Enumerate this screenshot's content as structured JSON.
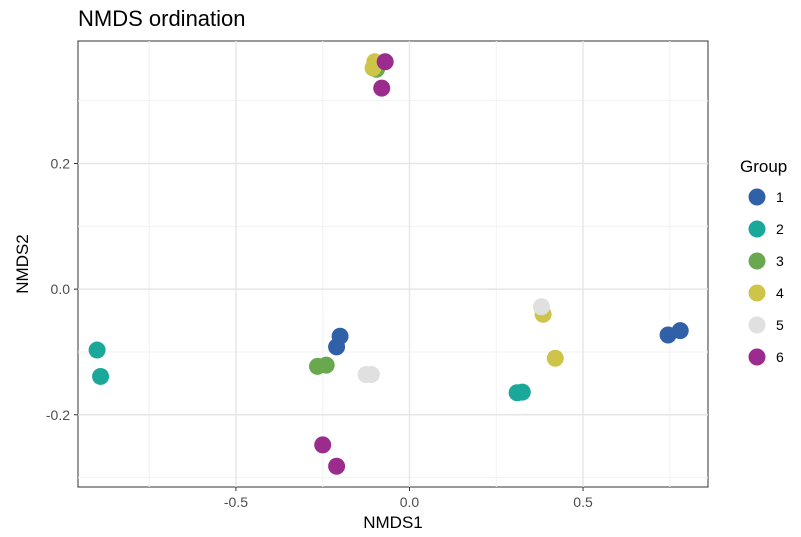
{
  "chart_data": {
    "type": "scatter",
    "title": "NMDS ordination",
    "xlabel": "NMDS1",
    "ylabel": "NMDS2",
    "xlim": [
      -0.955,
      0.86
    ],
    "ylim": [
      -0.315,
      0.395
    ],
    "xticks": [
      -0.5,
      0.0,
      0.5
    ],
    "xtick_labels": [
      "-0.5",
      "0.0",
      "0.5"
    ],
    "yticks": [
      -0.2,
      0.0,
      0.2
    ],
    "ytick_labels": [
      "-0.2",
      "0.0",
      "0.2"
    ],
    "grid": true,
    "legend": {
      "title": "Group",
      "position": "right"
    },
    "series": [
      {
        "name": "1",
        "color": "#3060a8",
        "points": [
          [
            -0.2,
            -0.075
          ],
          [
            -0.21,
            -0.092
          ],
          [
            0.745,
            -0.073
          ],
          [
            0.78,
            -0.066
          ]
        ]
      },
      {
        "name": "2",
        "color": "#1aa89a",
        "points": [
          [
            -0.9,
            -0.097
          ],
          [
            -0.89,
            -0.139
          ],
          [
            0.31,
            -0.165
          ],
          [
            0.325,
            -0.164
          ]
        ]
      },
      {
        "name": "3",
        "color": "#6aa84f",
        "points": [
          [
            -0.265,
            -0.123
          ],
          [
            -0.24,
            -0.121
          ],
          [
            -0.095,
            0.35
          ]
        ]
      },
      {
        "name": "4",
        "color": "#cfc44a",
        "points": [
          [
            0.385,
            -0.04
          ],
          [
            0.42,
            -0.11
          ],
          [
            -0.1,
            0.362
          ],
          [
            -0.105,
            0.352
          ]
        ]
      },
      {
        "name": "5",
        "color": "#e0e0e0",
        "points": [
          [
            0.38,
            -0.028
          ],
          [
            -0.125,
            -0.136
          ],
          [
            -0.11,
            -0.136
          ]
        ]
      },
      {
        "name": "6",
        "color": "#9b2c8e",
        "points": [
          [
            -0.07,
            0.362
          ],
          [
            -0.08,
            0.32
          ],
          [
            -0.25,
            -0.248
          ],
          [
            -0.21,
            -0.282
          ]
        ]
      }
    ]
  }
}
